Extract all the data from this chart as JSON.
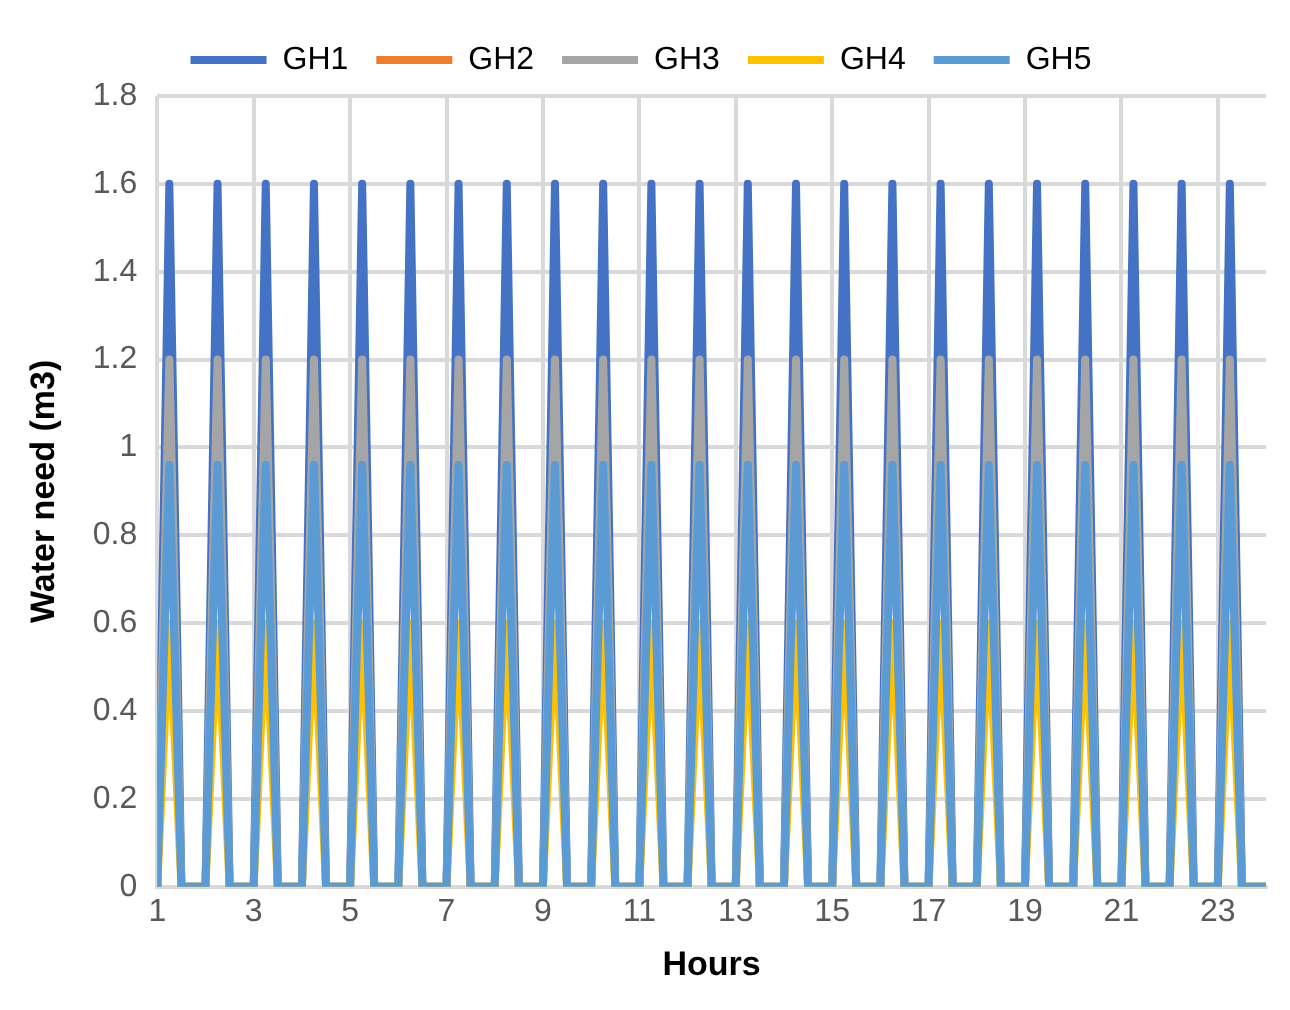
{
  "chart_data": {
    "type": "line",
    "xlabel": "Hours",
    "ylabel": "Water need (m3)",
    "x": [
      1,
      1.25,
      1.5,
      1.75,
      2,
      2.25,
      2.5,
      2.75,
      3,
      3.25,
      3.5,
      3.75,
      4,
      4.25,
      4.5,
      4.75,
      5,
      5.25,
      5.5,
      5.75,
      6,
      6.25,
      6.5,
      6.75,
      7,
      7.25,
      7.5,
      7.75,
      8,
      8.25,
      8.5,
      8.75,
      9,
      9.25,
      9.5,
      9.75,
      10,
      10.25,
      10.5,
      10.75,
      11,
      11.25,
      11.5,
      11.75,
      12,
      12.25,
      12.5,
      12.75,
      13,
      13.25,
      13.5,
      13.75,
      14,
      14.25,
      14.5,
      14.75,
      15,
      15.25,
      15.5,
      15.75,
      16,
      16.25,
      16.5,
      16.75,
      17,
      17.25,
      17.5,
      17.75,
      18,
      18.25,
      18.5,
      18.75,
      19,
      19.25,
      19.5,
      19.75,
      20,
      20.25,
      20.5,
      20.75,
      21,
      21.25,
      21.5,
      21.75,
      22,
      22.25,
      22.5,
      22.75,
      23,
      23.25,
      23.5,
      23.75,
      24
    ],
    "series": [
      {
        "name": "GH1",
        "color": "#4472c4",
        "values": [
          0,
          1.6,
          0,
          0,
          0,
          1.6,
          0,
          0,
          0,
          1.6,
          0,
          0,
          0,
          1.6,
          0,
          0,
          0,
          1.6,
          0,
          0,
          0,
          1.6,
          0,
          0,
          0,
          1.6,
          0,
          0,
          0,
          1.6,
          0,
          0,
          0,
          1.6,
          0,
          0,
          0,
          1.6,
          0,
          0,
          0,
          1.6,
          0,
          0,
          0,
          1.6,
          0,
          0,
          0,
          1.6,
          0,
          0,
          0,
          1.6,
          0,
          0,
          0,
          1.6,
          0,
          0,
          0,
          1.6,
          0,
          0,
          0,
          1.6,
          0,
          0,
          0,
          1.6,
          0,
          0,
          0,
          1.6,
          0,
          0,
          0,
          1.6,
          0,
          0,
          0,
          1.6,
          0,
          0,
          0,
          1.6,
          0,
          0,
          0,
          1.6,
          0,
          0,
          0
        ]
      },
      {
        "name": "GH2",
        "color": "#ed7d31",
        "values": [
          null,
          null,
          null,
          null,
          null,
          null,
          null,
          null,
          null,
          null,
          null,
          null,
          null,
          null,
          null,
          null,
          null,
          null,
          null,
          null,
          null,
          null,
          null,
          null,
          null,
          null,
          null,
          null,
          null,
          null,
          null,
          null,
          null,
          null,
          null,
          null,
          null,
          null,
          null,
          null,
          null,
          null,
          null,
          null,
          null,
          null,
          null,
          null,
          null,
          null,
          null,
          null,
          null,
          null,
          null,
          null,
          null,
          null,
          null,
          null,
          null,
          null,
          null,
          null,
          null,
          null,
          null,
          null,
          null,
          null,
          null,
          null,
          null,
          null,
          null,
          null,
          null,
          null,
          null,
          null,
          null,
          null,
          null,
          null,
          null,
          null,
          null,
          null,
          null,
          null,
          null,
          null,
          null
        ]
      },
      {
        "name": "GH3",
        "color": "#a5a5a5",
        "values": [
          0,
          1.2,
          0,
          0,
          0,
          1.2,
          0,
          0,
          0,
          1.2,
          0,
          0,
          0,
          1.2,
          0,
          0,
          0,
          1.2,
          0,
          0,
          0,
          1.2,
          0,
          0,
          0,
          1.2,
          0,
          0,
          0,
          1.2,
          0,
          0,
          0,
          1.2,
          0,
          0,
          0,
          1.2,
          0,
          0,
          0,
          1.2,
          0,
          0,
          0,
          1.2,
          0,
          0,
          0,
          1.2,
          0,
          0,
          0,
          1.2,
          0,
          0,
          0,
          1.2,
          0,
          0,
          0,
          1.2,
          0,
          0,
          0,
          1.2,
          0,
          0,
          0,
          1.2,
          0,
          0,
          0,
          1.2,
          0,
          0,
          0,
          1.2,
          0,
          0,
          0,
          1.2,
          0,
          0,
          0,
          1.2,
          0,
          0,
          0,
          1.2,
          0,
          0,
          0
        ]
      },
      {
        "name": "GH4",
        "color": "#ffc000",
        "values": [
          0,
          0.6,
          0,
          0,
          0,
          0.6,
          0,
          0,
          0,
          0.6,
          0,
          0,
          0,
          0.6,
          0,
          0,
          0,
          0.6,
          0,
          0,
          0,
          0.6,
          0,
          0,
          0,
          0.6,
          0,
          0,
          0,
          0.6,
          0,
          0,
          0,
          0.6,
          0,
          0,
          0,
          0.6,
          0,
          0,
          0,
          0.6,
          0,
          0,
          0,
          0.6,
          0,
          0,
          0,
          0.6,
          0,
          0,
          0,
          0.6,
          0,
          0,
          0,
          0.6,
          0,
          0,
          0,
          0.6,
          0,
          0,
          0,
          0.6,
          0,
          0,
          0,
          0.6,
          0,
          0,
          0,
          0.6,
          0,
          0,
          0,
          0.6,
          0,
          0,
          0,
          0.6,
          0,
          0,
          0,
          0.6,
          0,
          0,
          0,
          0.6,
          0,
          0,
          0
        ]
      },
      {
        "name": "GH5",
        "color": "#5b9bd5",
        "values": [
          0,
          0.96,
          0,
          0,
          0,
          0.96,
          0,
          0,
          0,
          0.96,
          0,
          0,
          0,
          0.96,
          0,
          0,
          0,
          0.96,
          0,
          0,
          0,
          0.96,
          0,
          0,
          0,
          0.96,
          0,
          0,
          0,
          0.96,
          0,
          0,
          0,
          0.96,
          0,
          0,
          0,
          0.96,
          0,
          0,
          0,
          0.96,
          0,
          0,
          0,
          0.96,
          0,
          0,
          0,
          0.96,
          0,
          0,
          0,
          0.96,
          0,
          0,
          0,
          0.96,
          0,
          0,
          0,
          0.96,
          0,
          0,
          0,
          0.96,
          0,
          0,
          0,
          0.96,
          0,
          0,
          0,
          0.96,
          0,
          0,
          0,
          0.96,
          0,
          0,
          0,
          0.96,
          0,
          0,
          0,
          0.96,
          0,
          0,
          0,
          0.96,
          0,
          0,
          0
        ]
      }
    ],
    "xlim": [
      1,
      24
    ],
    "xticks": [
      1,
      3,
      5,
      7,
      9,
      11,
      13,
      15,
      17,
      19,
      21,
      23
    ],
    "ylim": [
      0,
      1.8
    ],
    "yticks": [
      0,
      0.2,
      0.4,
      0.6,
      0.8,
      1,
      1.2,
      1.4,
      1.6,
      1.8
    ],
    "grid": true,
    "legend": "top",
    "marker": "none",
    "line_style": "solid"
  }
}
